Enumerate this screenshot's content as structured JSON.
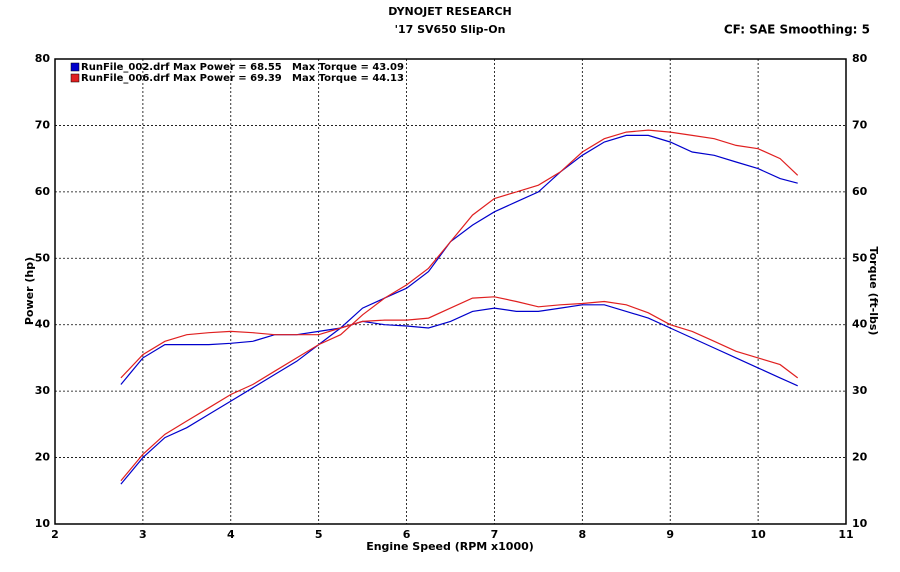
{
  "chart_data": {
    "type": "line",
    "title": "DYNOJET RESEARCH",
    "subtitle": "'17 SV650 Slip-On",
    "corner_text": "CF: SAE  Smoothing: 5",
    "x_label": "Engine Speed (RPM x1000)",
    "y_label": "Power (hp)",
    "y2_label": "Torque (ft-lbs)",
    "grid": true,
    "xlim": [
      2,
      11
    ],
    "xticks": [
      2,
      3,
      4,
      5,
      6,
      7,
      8,
      9,
      10,
      11
    ],
    "ylim": [
      10,
      80
    ],
    "yticks": [
      10,
      20,
      30,
      40,
      50,
      60,
      70,
      80
    ],
    "y2lim": [
      10,
      80
    ],
    "y2ticks": [
      10,
      20,
      30,
      40,
      50,
      60,
      70,
      80
    ],
    "legend": [
      {
        "color": "#0000cc",
        "text": "RunFile_002.drf Max Power = 68.55",
        "torque_text": "Max Torque = 43.09"
      },
      {
        "color": "#e02020",
        "text": "RunFile_006.drf Max Power = 69.39",
        "torque_text": "Max Torque = 44.13"
      }
    ],
    "x": [
      2.75,
      3.0,
      3.25,
      3.5,
      3.75,
      4.0,
      4.25,
      4.5,
      4.75,
      5.0,
      5.25,
      5.5,
      5.75,
      6.0,
      6.25,
      6.5,
      6.75,
      7.0,
      7.25,
      7.5,
      7.75,
      8.0,
      8.25,
      8.5,
      8.75,
      9.0,
      9.25,
      9.5,
      9.75,
      10.0,
      10.25,
      10.45
    ],
    "series": [
      {
        "color": "#0000cc",
        "axis": "y",
        "values": [
          16,
          20,
          23,
          24.5,
          26.5,
          28.5,
          30.5,
          32.5,
          34.5,
          37,
          39.5,
          42.5,
          44,
          45.5,
          48,
          52.5,
          55,
          57,
          58.5,
          60,
          63,
          65.5,
          67.5,
          68.5,
          68.5,
          67.5,
          66,
          65.5,
          64.5,
          63.5,
          62,
          61.3
        ]
      },
      {
        "color": "#e02020",
        "axis": "y",
        "values": [
          16.5,
          20.5,
          23.5,
          25.5,
          27.5,
          29.5,
          31,
          33,
          35,
          37,
          38.5,
          41.5,
          44,
          46,
          48.5,
          52.5,
          56.5,
          59,
          60,
          61,
          63,
          66,
          68,
          69,
          69.3,
          69,
          68.5,
          68,
          67,
          66.5,
          65,
          62.5
        ]
      },
      {
        "color": "#0000cc",
        "axis": "y2",
        "values": [
          31,
          35,
          37,
          37,
          37,
          37.2,
          37.5,
          38.5,
          38.5,
          39,
          39.5,
          40.5,
          40,
          39.8,
          39.5,
          40.5,
          42,
          42.5,
          42,
          42,
          42.5,
          43,
          43,
          42,
          41,
          39.5,
          38,
          36.5,
          35,
          33.5,
          32,
          30.8
        ]
      },
      {
        "color": "#e02020",
        "axis": "y2",
        "values": [
          32,
          35.5,
          37.5,
          38.5,
          38.8,
          39,
          38.8,
          38.5,
          38.5,
          38.5,
          39.5,
          40.5,
          40.7,
          40.7,
          41,
          42.5,
          44,
          44.2,
          43.5,
          42.7,
          43,
          43.2,
          43.5,
          43,
          41.8,
          40,
          39,
          37.5,
          36,
          35,
          34,
          32
        ]
      }
    ]
  }
}
